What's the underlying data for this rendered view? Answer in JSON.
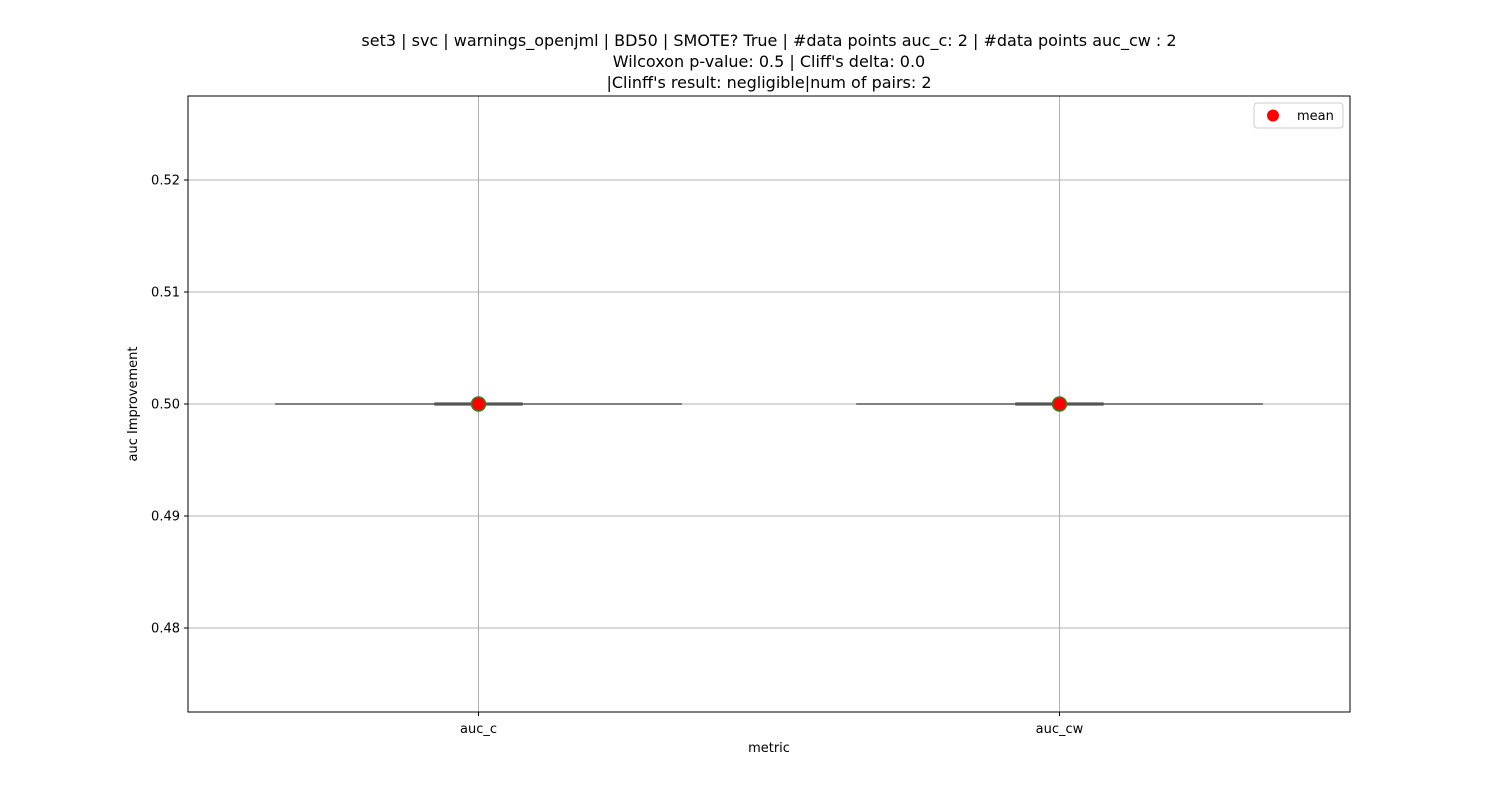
{
  "chart_data": {
    "type": "box",
    "title": [
      "set3 | svc | warnings_openjml | BD50 | SMOTE? True | #data points auc_c: 2 | #data points auc_cw : 2",
      "Wilcoxon p-value: 0.5 | Cliff's delta: 0.0",
      "|Clinff's result: negligible|num of pairs: 2"
    ],
    "xlabel": "metric",
    "ylabel": "auc Improvement",
    "categories": [
      "auc_c",
      "auc_cw"
    ],
    "ylim": [
      0.4725,
      0.5275
    ],
    "yticks": [
      0.48,
      0.49,
      0.5,
      0.51,
      0.52
    ],
    "ytick_labels": [
      "0.48",
      "0.49",
      "0.50",
      "0.51",
      "0.52"
    ],
    "grid": true,
    "legend": {
      "placement": "top-right",
      "entries": [
        {
          "name": "mean",
          "color": "#ff0000"
        }
      ]
    },
    "series": [
      {
        "category": "auc_c",
        "min": 0.5,
        "q1": 0.5,
        "median": 0.5,
        "q3": 0.5,
        "max": 0.5,
        "mean": 0.5
      },
      {
        "category": "auc_cw",
        "min": 0.5,
        "q1": 0.5,
        "median": 0.5,
        "q3": 0.5,
        "max": 0.5,
        "mean": 0.5
      }
    ],
    "colors": {
      "mean_marker": "#ff0000",
      "mean_marker_edge": "#3a7d1e",
      "box_line": "#555555",
      "grid": "#b0b0b0"
    }
  }
}
